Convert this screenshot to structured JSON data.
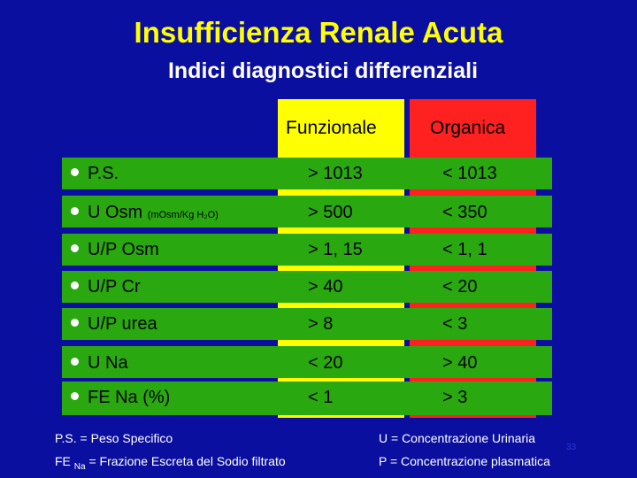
{
  "slide": {
    "title": "Insufficienza Renale Acuta",
    "subtitle": "Indici diagnostici differenziali",
    "number": "33"
  },
  "table": {
    "col_functional": "Funzionale",
    "col_organic": "Organica",
    "rows": [
      {
        "label": "P.S.",
        "unit": "",
        "functional": "> 1013",
        "organic": "< 1013"
      },
      {
        "label": "U Osm ",
        "unit": "(mOsm/Kg H₂O)",
        "functional": ">  500",
        "organic": "< 350"
      },
      {
        "label": "U/P Osm",
        "unit": "",
        "functional": "> 1, 15",
        "organic": "< 1, 1"
      },
      {
        "label": "U/P Cr",
        "unit": "",
        "functional": "> 40",
        "organic": "< 20"
      },
      {
        "label": "U/P urea",
        "unit": "",
        "functional": "> 8",
        "organic": "< 3"
      },
      {
        "label": "U Na",
        "unit": "",
        "functional": "< 20",
        "organic": "> 40"
      },
      {
        "label": "FE Na (%)",
        "unit": "",
        "functional": "< 1",
        "organic": "> 3"
      }
    ]
  },
  "legend": {
    "ps_def": "P.S. = Peso Specifico",
    "fe_prefix": "FE ",
    "fe_sub": "Na",
    "fe_def": " = Frazione Escreta del Sodio filtrato",
    "u_def": "U = Concentrazione Urinaria",
    "p_def": "P = Concentrazione plasmatica"
  },
  "colors": {
    "background": "#0b0fa0",
    "title": "#ffff00",
    "functional_column": "#ffff00",
    "organic_column": "#ff2020",
    "row_bar": "#2aa80f"
  }
}
